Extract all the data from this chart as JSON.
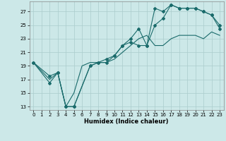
{
  "xlabel": "Humidex (Indice chaleur)",
  "xlim": [
    -0.5,
    23.5
  ],
  "ylim": [
    12.5,
    28.5
  ],
  "xticks": [
    0,
    1,
    2,
    3,
    4,
    5,
    6,
    7,
    8,
    9,
    10,
    11,
    12,
    13,
    14,
    15,
    16,
    17,
    18,
    19,
    20,
    21,
    22,
    23
  ],
  "yticks": [
    13,
    15,
    17,
    19,
    21,
    23,
    25,
    27
  ],
  "bg_color": "#cce8e8",
  "grid_color": "#aacccc",
  "line_color": "#1a6b6b",
  "line1_x": [
    0,
    2,
    3,
    4,
    5,
    7,
    8,
    9,
    10,
    11,
    12,
    13,
    14,
    15,
    16,
    17,
    18,
    19,
    20,
    21,
    22,
    23
  ],
  "line1_y": [
    19.5,
    16.5,
    18.0,
    13.0,
    13.0,
    19.0,
    19.5,
    19.5,
    20.5,
    22.0,
    23.0,
    24.5,
    22.0,
    27.5,
    27.0,
    28.0,
    27.5,
    27.5,
    27.5,
    27.0,
    26.5,
    25.0
  ],
  "line2_x": [
    0,
    2,
    3,
    4,
    5,
    7,
    8,
    9,
    10,
    11,
    12,
    13,
    14,
    15,
    16,
    17,
    18,
    19,
    20,
    21,
    22,
    23
  ],
  "line2_y": [
    19.5,
    17.5,
    18.0,
    13.0,
    13.0,
    19.0,
    19.5,
    20.0,
    20.5,
    22.0,
    22.5,
    22.0,
    22.0,
    25.0,
    26.0,
    28.0,
    27.5,
    27.5,
    27.5,
    27.0,
    26.5,
    24.5
  ],
  "line3_x": [
    0,
    2,
    3,
    4,
    5,
    6,
    7,
    8,
    9,
    10,
    11,
    12,
    13,
    14,
    15,
    16,
    17,
    18,
    19,
    20,
    21,
    22,
    23
  ],
  "line3_y": [
    19.5,
    17.0,
    18.0,
    13.0,
    15.0,
    19.0,
    19.5,
    19.5,
    19.5,
    20.0,
    21.0,
    22.0,
    23.0,
    23.5,
    22.0,
    22.0,
    23.0,
    23.5,
    23.5,
    23.5,
    23.0,
    24.0,
    23.5
  ],
  "xlabel_fontsize": 6,
  "tick_fontsize": 5,
  "linewidth": 0.8,
  "markersize": 2.0
}
